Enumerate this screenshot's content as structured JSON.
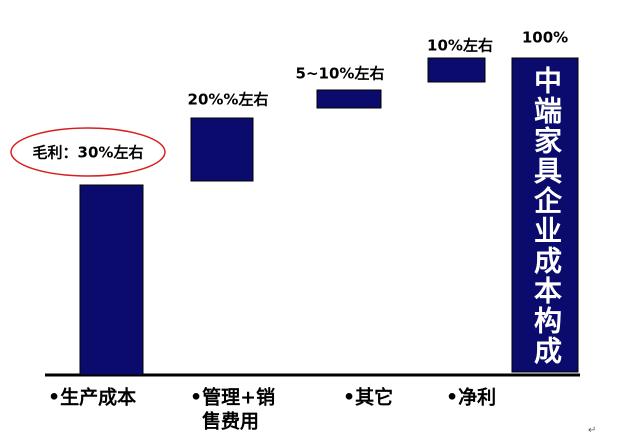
{
  "gross_margin_label": "毛利：30%左右",
  "items": [
    {
      "lines": [
        "•生产成本"
      ]
    },
    {
      "lines": [
        "•管理+销",
        "售费用"
      ],
      "value_label": "20%%左右"
    },
    {
      "lines": [
        "•其它"
      ],
      "value_label": "5~10%左右"
    },
    {
      "lines": [
        "•净利"
      ],
      "value_label": "10%左右"
    }
  ],
  "total": {
    "value_label": "100%",
    "text": "中端家具企业成本构成"
  },
  "return_mark": "↵"
}
